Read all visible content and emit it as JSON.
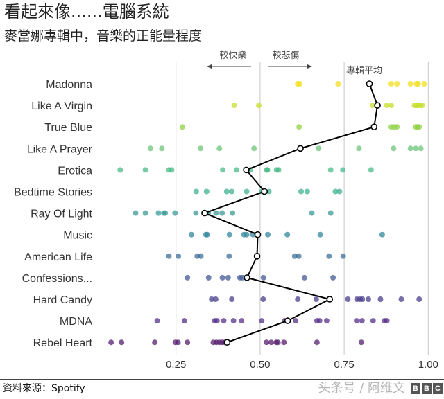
{
  "header": {
    "title": "看起來像......電腦系統",
    "subtitle": "麥當娜專輯中，音樂的正能量程度"
  },
  "footer": {
    "source": "資料來源：Spotify",
    "watermark": "头条号 / 阿维文",
    "logo": "BBC"
  },
  "chart_data": {
    "type": "scatter",
    "title": "看起來像......電腦系統",
    "subtitle": "麥當娜專輯中，音樂的正能量程度",
    "xlabel": "",
    "ylabel": "",
    "xlim": [
      0.0,
      1.0
    ],
    "xticks": [
      0.25,
      0.5,
      0.75,
      1.0
    ],
    "xtick_labels": [
      "0.25",
      "0.50",
      "0.75",
      "1.00"
    ],
    "grid": "vertical",
    "annotations": {
      "happier": "較快樂",
      "sadder": "較悲傷",
      "album_average": "專輯平均"
    },
    "albums": [
      {
        "name": "Madonna",
        "color": "#f2df1f",
        "average": 0.825,
        "tracks": [
          0.612,
          0.618,
          0.732,
          0.89,
          0.907,
          0.947,
          0.965,
          0.97,
          0.988
        ]
      },
      {
        "name": "Like A Virgin",
        "color": "#c7df2c",
        "average": 0.849,
        "tracks": [
          0.423,
          0.496,
          0.834,
          0.877,
          0.89,
          0.959,
          0.965,
          0.97,
          0.977,
          0.982
        ]
      },
      {
        "name": "True Blue",
        "color": "#8fd144",
        "average": 0.839,
        "tracks": [
          0.269,
          0.616,
          0.89,
          0.899,
          0.907,
          0.963,
          0.968,
          0.973
        ]
      },
      {
        "name": "Like A Prayer",
        "color": "#6cc57a",
        "average": 0.62,
        "tracks": [
          0.174,
          0.208,
          0.323,
          0.379,
          0.482,
          0.674,
          0.794,
          0.897,
          0.947,
          0.963,
          0.978
        ]
      },
      {
        "name": "Erotica",
        "color": "#48bb86",
        "average": 0.459,
        "tracks": [
          0.084,
          0.159,
          0.229,
          0.237,
          0.389,
          0.43,
          0.471,
          0.52,
          0.522,
          0.549,
          0.555,
          0.71,
          0.746,
          0.83
        ]
      },
      {
        "name": "Bedtime Stories",
        "color": "#3fb292",
        "average": 0.513,
        "tracks": [
          0.31,
          0.341,
          0.401,
          0.416,
          0.46,
          0.505,
          0.526,
          0.622,
          0.64,
          0.724,
          0.736
        ]
      },
      {
        "name": "Ray Of Light",
        "color": "#3b9b98",
        "average": 0.335,
        "tracks": [
          0.13,
          0.159,
          0.198,
          0.214,
          0.218,
          0.247,
          0.309,
          0.346,
          0.369,
          0.387,
          0.418,
          0.654,
          0.71
        ]
      },
      {
        "name": "Music",
        "color": "#33879c",
        "average": 0.493,
        "tracks": [
          0.296,
          0.339,
          0.343,
          0.409,
          0.452,
          0.46,
          0.479,
          0.523,
          0.581,
          0.679,
          0.863
        ]
      },
      {
        "name": "American Life",
        "color": "#3f6f98",
        "average": 0.491,
        "tracks": [
          0.229,
          0.257,
          0.313,
          0.324,
          0.408,
          0.603,
          0.615,
          0.705,
          0.747
        ]
      },
      {
        "name": "Confessions...",
        "color": "#445a96",
        "average": 0.461,
        "tracks": [
          0.284,
          0.347,
          0.388,
          0.405,
          0.44,
          0.447,
          0.51,
          0.632,
          0.717
        ]
      },
      {
        "name": "Hard Candy",
        "color": "#4a3f8c",
        "average": 0.707,
        "tracks": [
          0.356,
          0.368,
          0.416,
          0.509,
          0.612,
          0.667,
          0.761,
          0.788,
          0.797,
          0.804,
          0.822,
          0.858,
          0.92,
          0.973
        ]
      },
      {
        "name": "MDNA",
        "color": "#55308a",
        "average": 0.582,
        "tracks": [
          0.194,
          0.275,
          0.365,
          0.372,
          0.392,
          0.421,
          0.445,
          0.505,
          0.573,
          0.606,
          0.669,
          0.677,
          0.698,
          0.787,
          0.803,
          0.836,
          0.87,
          0.877
        ]
      },
      {
        "name": "Rebel Heart",
        "color": "#561f6f",
        "average": 0.402,
        "tracks": [
          0.057,
          0.088,
          0.187,
          0.248,
          0.256,
          0.284,
          0.361,
          0.37,
          0.379,
          0.387,
          0.395,
          0.519,
          0.533,
          0.548,
          0.553,
          0.571,
          0.669,
          0.801
        ]
      }
    ]
  }
}
